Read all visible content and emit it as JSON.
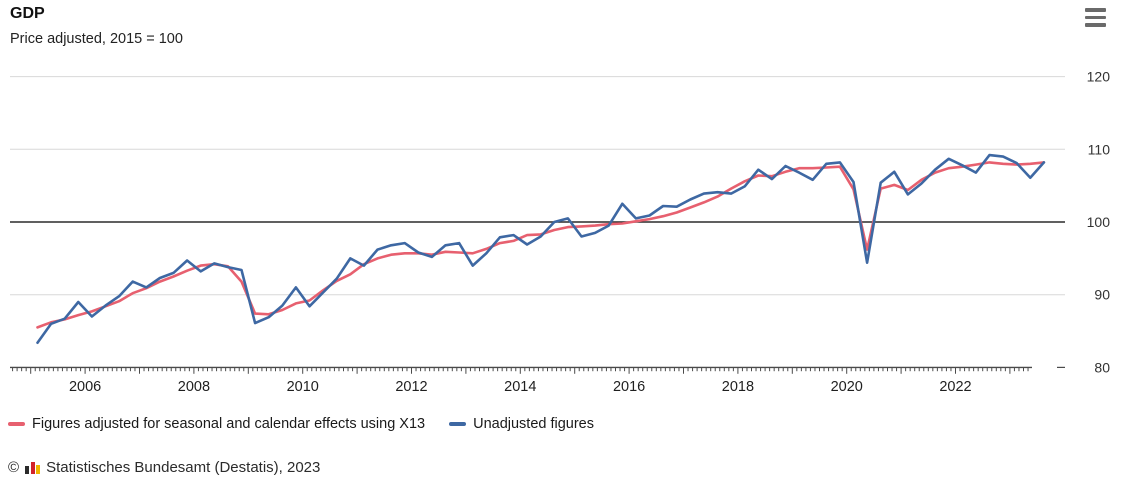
{
  "header": {
    "title": "GDP",
    "subtitle": "Price adjusted, 2015 = 100",
    "menu_icon": "hamburger-menu-icon"
  },
  "chart_data": {
    "type": "line",
    "title": "GDP",
    "subtitle": "Price adjusted, 2015 = 100",
    "frequency": "quarterly",
    "periods_start": "2005-Q1",
    "periods_end": "2023-Q3",
    "ylim": [
      80,
      122
    ],
    "reference_line": 100,
    "grid": "horizontal",
    "legend_position": "bottom",
    "y_ticks": [
      120,
      110,
      100,
      90,
      80
    ],
    "x_tick_years": [
      2006,
      2008,
      2010,
      2012,
      2014,
      2016,
      2018,
      2020,
      2022
    ],
    "series": [
      {
        "name": "Figures adjusted for seasonal and calendar effects using X13",
        "color": "#e7606f",
        "values": [
          85.5,
          86.2,
          86.6,
          87.2,
          87.7,
          88.4,
          89.1,
          90.2,
          90.9,
          91.8,
          92.5,
          93.3,
          94.0,
          94.2,
          93.9,
          91.8,
          87.4,
          87.3,
          87.9,
          88.8,
          89.2,
          90.6,
          91.9,
          92.8,
          94.2,
          95.0,
          95.5,
          95.7,
          95.7,
          95.5,
          95.9,
          95.8,
          95.7,
          96.3,
          97.1,
          97.4,
          98.2,
          98.3,
          98.9,
          99.3,
          99.4,
          99.5,
          99.7,
          99.8,
          100.1,
          100.4,
          100.8,
          101.3,
          102.0,
          102.7,
          103.5,
          104.6,
          105.6,
          106.4,
          106.3,
          106.9,
          107.4,
          107.4,
          107.5,
          107.6,
          104.5,
          96.2,
          104.6,
          105.1,
          104.4,
          105.8,
          106.8,
          107.4,
          107.6,
          107.9,
          108.2,
          108.0,
          107.9,
          108.0,
          108.2
        ]
      },
      {
        "name": "Unadjusted figures",
        "color": "#3e68a3",
        "values": [
          83.4,
          86.0,
          86.7,
          89.0,
          87.0,
          88.5,
          89.8,
          91.8,
          91.0,
          92.3,
          93.0,
          94.7,
          93.2,
          94.3,
          93.8,
          93.4,
          86.1,
          86.9,
          88.5,
          91.0,
          88.4,
          90.3,
          92.2,
          95.0,
          94.0,
          96.2,
          96.8,
          97.1,
          95.8,
          95.2,
          96.8,
          97.1,
          94.0,
          95.7,
          97.9,
          98.2,
          96.9,
          98.0,
          100.0,
          100.5,
          98.0,
          98.5,
          99.5,
          102.5,
          100.5,
          100.9,
          102.2,
          102.1,
          103.1,
          103.9,
          104.1,
          103.9,
          104.9,
          107.2,
          105.9,
          107.7,
          106.8,
          105.8,
          108.0,
          108.2,
          105.5,
          94.4,
          105.4,
          106.9,
          103.8,
          105.3,
          107.2,
          108.7,
          107.8,
          106.8,
          109.2,
          109.0,
          108.1,
          106.1,
          108.2
        ]
      }
    ]
  },
  "legend": {
    "adjusted_label": "Figures adjusted for seasonal and calendar effects using X13",
    "unadjusted_label": "Unadjusted figures"
  },
  "footer": {
    "copyright": "©",
    "source": "Statistisches Bundesamt (Destatis), 2023",
    "logo_bar_colors": [
      "#2b2b2b",
      "#d2232a",
      "#f0b500"
    ]
  },
  "colors": {
    "adjusted_line": "#e7606f",
    "unadjusted_line": "#3e68a3",
    "gridline": "#d8d8d8",
    "reference_line": "#2b2b2b",
    "axis": "#4a4a4a",
    "menu_icon": "#6a6a6a"
  }
}
